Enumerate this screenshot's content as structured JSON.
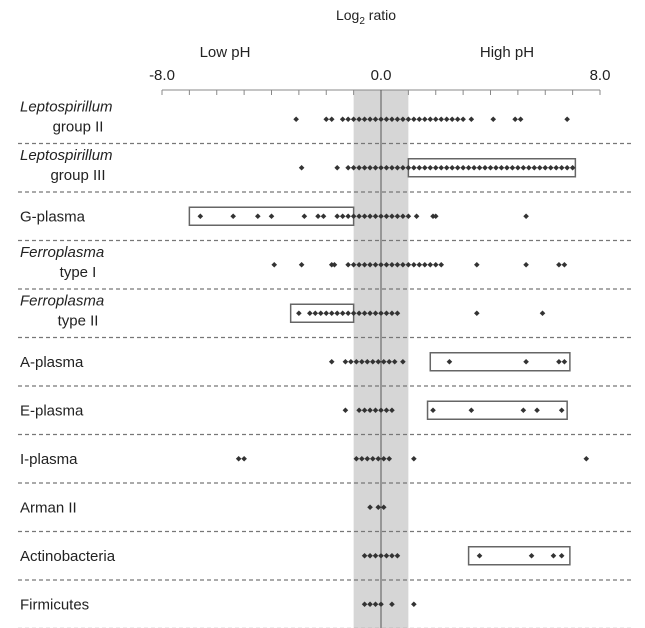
{
  "chart_data": {
    "type": "scatter",
    "title_parts": {
      "main": "Log",
      "sub": "2",
      "rest": " ratio"
    },
    "low_label": "Low pH",
    "high_label": "High pH",
    "x_ticks": [
      "-8.0",
      "0.0",
      "8.0"
    ],
    "xlim": [
      -8.0,
      8.0
    ],
    "shaded_band": [
      -1.0,
      1.0
    ],
    "colors": {
      "band": "#d6d6d6",
      "point": "#333333",
      "box": "#666666",
      "axis": "#888888",
      "divider": "#777777"
    },
    "groups": [
      {
        "label_lines": [
          "Leptospirillum",
          "group II"
        ],
        "italic": true,
        "points": [
          -3.1,
          -2.0,
          -1.8,
          -1.4,
          -1.2,
          -1.0,
          -0.8,
          -0.6,
          -0.4,
          -0.2,
          0.0,
          0.2,
          0.4,
          0.6,
          0.8,
          1.0,
          1.2,
          1.4,
          1.6,
          1.8,
          2.0,
          2.2,
          2.4,
          2.6,
          2.8,
          3.0,
          3.3,
          4.1,
          4.9,
          5.1,
          6.8
        ],
        "boxes": []
      },
      {
        "label_lines": [
          "Leptospirillum",
          "group III"
        ],
        "italic": true,
        "points": [
          -2.9,
          -1.6,
          -1.2,
          -1.0,
          -0.8,
          -0.6,
          -0.4,
          -0.2,
          0.0,
          0.2,
          0.4,
          0.6,
          0.8,
          1.0,
          1.2,
          1.4,
          1.6,
          1.8,
          2.0,
          2.2,
          2.4,
          2.6,
          2.8,
          3.0,
          3.2,
          3.4,
          3.6,
          3.8,
          4.0,
          4.2,
          4.4,
          4.6,
          4.8,
          5.0,
          5.2,
          5.4,
          5.6,
          5.8,
          6.0,
          6.2,
          6.4,
          6.6,
          6.8,
          7.0
        ],
        "boxes": [
          [
            1.0,
            7.1
          ]
        ]
      },
      {
        "label_lines": [
          "G-plasma"
        ],
        "italic": false,
        "points": [
          -6.6,
          -5.4,
          -4.5,
          -4.0,
          -2.8,
          -2.3,
          -2.1,
          -1.6,
          -1.4,
          -1.2,
          -1.0,
          -0.8,
          -0.6,
          -0.4,
          -0.2,
          0.0,
          0.2,
          0.4,
          0.6,
          0.8,
          1.0,
          1.3,
          1.9,
          2.0,
          5.3
        ],
        "boxes": [
          [
            -7.0,
            -1.0
          ]
        ]
      },
      {
        "label_lines": [
          "Ferroplasma",
          "type I"
        ],
        "italic": true,
        "points": [
          -3.9,
          -2.9,
          -1.8,
          -1.7,
          -1.2,
          -1.0,
          -0.8,
          -0.6,
          -0.4,
          -0.2,
          0.0,
          0.2,
          0.4,
          0.6,
          0.8,
          1.0,
          1.2,
          1.4,
          1.6,
          1.8,
          2.0,
          2.2,
          3.5,
          5.3,
          6.5,
          6.7
        ],
        "boxes": []
      },
      {
        "label_lines": [
          "Ferroplasma",
          "type II"
        ],
        "italic": true,
        "points": [
          -3.0,
          -2.6,
          -2.4,
          -2.2,
          -2.0,
          -1.8,
          -1.6,
          -1.4,
          -1.2,
          -1.0,
          -0.8,
          -0.6,
          -0.4,
          -0.2,
          0.0,
          0.2,
          0.4,
          0.6,
          3.5,
          5.9
        ],
        "boxes": [
          [
            -3.3,
            -1.0
          ]
        ]
      },
      {
        "label_lines": [
          "A-plasma"
        ],
        "italic": false,
        "points": [
          -1.8,
          -1.3,
          -1.1,
          -0.9,
          -0.7,
          -0.5,
          -0.3,
          -0.1,
          0.1,
          0.3,
          0.5,
          0.8,
          2.5,
          5.3,
          6.5,
          6.7
        ],
        "boxes": [
          [
            1.8,
            6.9
          ]
        ]
      },
      {
        "label_lines": [
          "E-plasma"
        ],
        "italic": false,
        "points": [
          -1.3,
          -0.8,
          -0.6,
          -0.4,
          -0.2,
          0.0,
          0.2,
          0.4,
          1.9,
          3.3,
          5.2,
          5.7,
          6.6
        ],
        "boxes": [
          [
            1.7,
            6.8
          ]
        ]
      },
      {
        "label_lines": [
          "I-plasma"
        ],
        "italic": false,
        "points": [
          -5.2,
          -5.0,
          -0.9,
          -0.7,
          -0.5,
          -0.3,
          -0.1,
          0.1,
          0.3,
          1.2,
          7.5
        ],
        "boxes": []
      },
      {
        "label_lines": [
          "Arman II"
        ],
        "italic": false,
        "points": [
          -0.4,
          -0.1,
          0.1
        ],
        "boxes": []
      },
      {
        "label_lines": [
          "Actinobacteria"
        ],
        "italic": false,
        "points": [
          -0.6,
          -0.4,
          -0.2,
          0.0,
          0.2,
          0.4,
          0.6,
          3.6,
          5.5,
          6.3,
          6.6
        ],
        "boxes": [
          [
            3.2,
            6.9
          ]
        ]
      },
      {
        "label_lines": [
          "Firmicutes"
        ],
        "italic": false,
        "points": [
          -0.6,
          -0.4,
          -0.2,
          0.0,
          0.4,
          1.2
        ],
        "boxes": []
      }
    ]
  }
}
